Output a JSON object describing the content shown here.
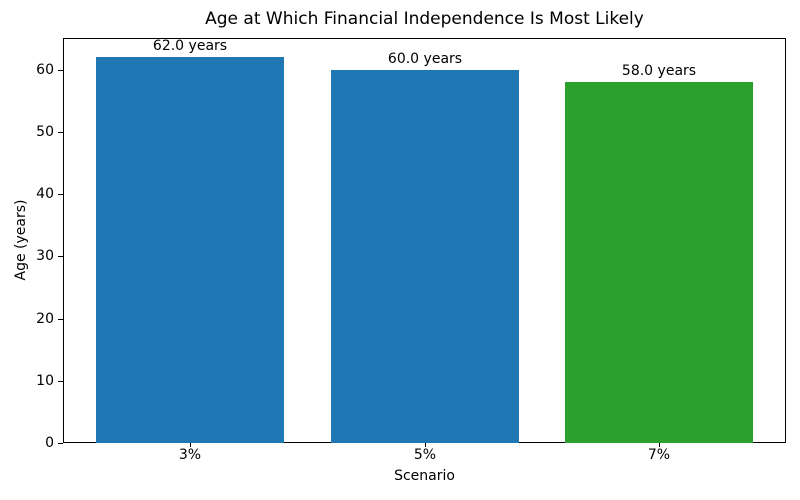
{
  "chart_data": {
    "type": "bar",
    "title": "Age at Which Financial Independence Is Most Likely",
    "xlabel": "Scenario",
    "ylabel": "Age (years)",
    "categories": [
      "3%",
      "5%",
      "7%"
    ],
    "values": [
      62.0,
      60.0,
      58.0
    ],
    "bar_labels": [
      "62.0 years",
      "60.0 years",
      "58.0 years"
    ],
    "bar_colors": [
      "#1f77b4",
      "#1f77b4",
      "#2ca02c"
    ],
    "yticks": [
      0,
      10,
      20,
      30,
      40,
      50,
      60
    ],
    "ylim": [
      0,
      65.1
    ],
    "bar_width_fraction": 0.8,
    "grid": false,
    "legend_position": "none",
    "axis_color": "#000000",
    "background_color": "#ffffff"
  }
}
